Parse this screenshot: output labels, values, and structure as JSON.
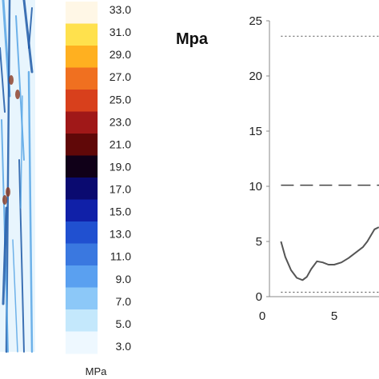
{
  "colorbar": {
    "ticks": [
      "33.0",
      "31.0",
      "29.0",
      "27.0",
      "25.0",
      "23.0",
      "21.0",
      "19.0",
      "17.0",
      "15.0",
      "13.0",
      "11.0",
      "9.0",
      "7.0",
      "5.0",
      "3.0"
    ],
    "unit": "MPa",
    "colors": [
      "#fff7e6",
      "#ffe14d",
      "#ffb020",
      "#f07020",
      "#d8401c",
      "#a01818",
      "#600808",
      "#100018",
      "#0a0a70",
      "#1020a8",
      "#2050d0",
      "#3a78e0",
      "#5aa0f0",
      "#8cc8f8",
      "#c4e8fc",
      "#eef8ff"
    ]
  },
  "stress_map": {
    "colors": {
      "light": "#d6ecfb",
      "mid": "#58a6e6",
      "deep": "#1f5aa8",
      "rust": "#8a3a22"
    }
  },
  "chart_data": {
    "type": "line",
    "ylabel": "Mpa",
    "xlim": [
      0,
      10.5
    ],
    "ylim": [
      0,
      25
    ],
    "y_ticks": [
      "0",
      "5",
      "10",
      "15",
      "20",
      "25"
    ],
    "x_ticks": [
      "0",
      "5"
    ],
    "series": [
      {
        "style": "solid",
        "color": "#555555",
        "x": [
          1.3,
          1.6,
          2.0,
          2.4,
          2.8,
          3.1,
          3.4,
          3.8,
          4.2,
          4.6,
          5.0,
          5.5,
          6.0,
          6.6,
          7.0,
          7.3,
          7.8,
          8.1
        ],
        "y": [
          5.0,
          3.6,
          2.4,
          1.7,
          1.5,
          1.8,
          2.5,
          3.2,
          3.1,
          2.9,
          2.9,
          3.1,
          3.5,
          4.1,
          4.5,
          5.0,
          6.1,
          6.3
        ]
      },
      {
        "style": "dotted",
        "color": "#666666",
        "x": [
          1.3,
          10.5
        ],
        "y": [
          23.6,
          23.6
        ]
      },
      {
        "style": "dashed",
        "color": "#444444",
        "x": [
          1.3,
          10.5
        ],
        "y": [
          10.1,
          10.1
        ]
      },
      {
        "style": "dotted",
        "color": "#666666",
        "x": [
          1.3,
          10.5
        ],
        "y": [
          0.4,
          0.4
        ]
      }
    ]
  }
}
